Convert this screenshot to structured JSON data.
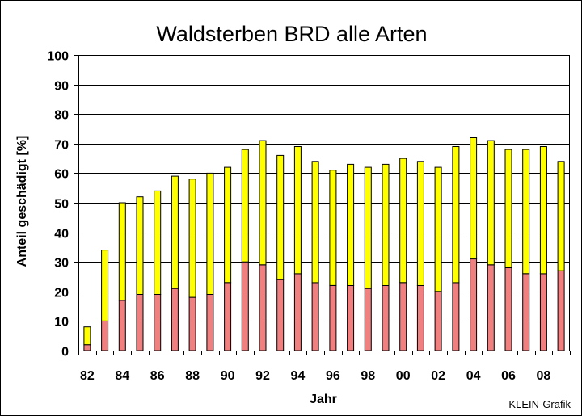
{
  "chart_data": {
    "type": "bar",
    "stacked": true,
    "title": "Waldsterben BRD   alle Arten",
    "xlabel": "Jahr",
    "ylabel": "Anteil geschädigt [%]",
    "ylim": [
      0,
      100
    ],
    "yticks": [
      "0",
      "10",
      "20",
      "30",
      "40",
      "50",
      "60",
      "70",
      "80",
      "90",
      "100"
    ],
    "categories": [
      "82",
      "83",
      "84",
      "85",
      "86",
      "87",
      "88",
      "89",
      "90",
      "91",
      "92",
      "93",
      "94",
      "95",
      "96",
      "97",
      "98",
      "99",
      "00",
      "01",
      "02",
      "03",
      "04",
      "05",
      "06",
      "07",
      "08",
      "09"
    ],
    "xtick_labels": [
      "82",
      "84",
      "86",
      "88",
      "90",
      "92",
      "94",
      "96",
      "98",
      "00",
      "02",
      "04",
      "06",
      "08"
    ],
    "grid": "horizontal",
    "legend": "none",
    "series": [
      {
        "color": "#f07f7f",
        "values": [
          2,
          10,
          17,
          19,
          19,
          21,
          18,
          19,
          23,
          30,
          29,
          24,
          26,
          23,
          22,
          22,
          21,
          22,
          23,
          22,
          20,
          23,
          31,
          29,
          28,
          26,
          26,
          27
        ]
      },
      {
        "color": "#ffff00",
        "values": [
          6,
          24,
          33,
          33,
          35,
          38,
          40,
          41,
          39,
          38,
          42,
          42,
          43,
          41,
          39,
          41,
          41,
          41,
          42,
          42,
          42,
          46,
          41,
          42,
          40,
          42,
          43,
          37
        ]
      }
    ],
    "credit": "KLEIN-Grafik"
  },
  "colors": {
    "background": "#ffffff",
    "plot_background": "#ffffff",
    "grid": "#000000"
  }
}
